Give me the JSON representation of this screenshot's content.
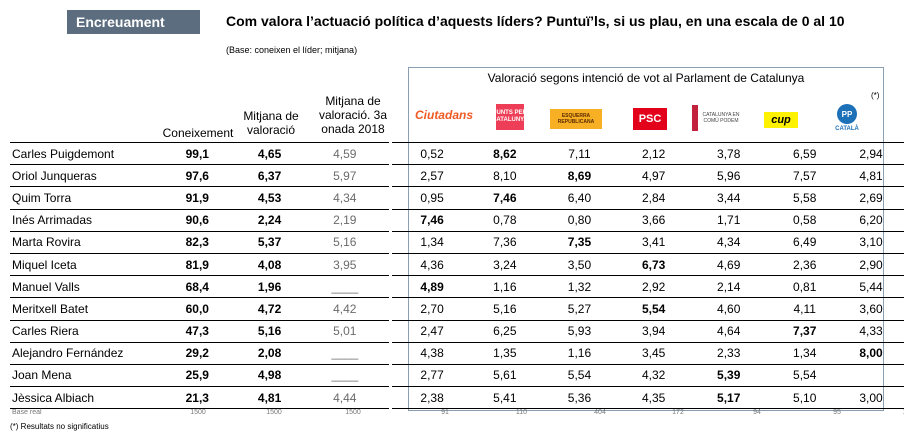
{
  "header": {
    "tag": "Encreuament",
    "title": "Com valora l’actuació política d’aquests líders? Puntuï’ls, si us plau, en una escala de 0 al 10",
    "subtitle": "(Base: coneixen el líder; mitjana)"
  },
  "columns": {
    "coneixement": "Coneixement",
    "mitjana": "Mitjana de valoració",
    "mitjana_prev": "Mitjana de valoració. 3a onada 2018",
    "group_title": "Valoració segons intenció de vot al Parlament de Catalunya",
    "asterisk": "(*)"
  },
  "parties": [
    {
      "name": "Ciutadans",
      "logo_text": "Ciutadans",
      "icon": "ciutadans-logo",
      "color": "#f05a23"
    },
    {
      "name": "Junts per Catalunya",
      "logo_text": "JUNTS PER CATALUNYA",
      "icon": "junts-logo",
      "color": "#ee3e57"
    },
    {
      "name": "Esquerra Republicana",
      "logo_text": "ESQUERRA REPUBLICANA",
      "icon": "erc-logo",
      "color": "#f7b023"
    },
    {
      "name": "PSC",
      "logo_text": "PSC",
      "icon": "psc-logo",
      "color": "#e3001b"
    },
    {
      "name": "Catalunya en Comú Podem",
      "logo_text": "CATALUNYA EN COMÚ PODEM",
      "icon": "comu-podem-logo",
      "color": "#c0233b"
    },
    {
      "name": "CUP",
      "logo_text": "cup",
      "icon": "cup-logo",
      "color": "#fff200"
    },
    {
      "name": "PP",
      "logo_text": "PP",
      "logo_sub": "CATALÀ",
      "icon": "pp-logo",
      "color": "#1d71b8"
    }
  ],
  "rows": [
    {
      "name": "Carles Puigdemont",
      "con": "99,1",
      "mit": "4,65",
      "prev": "4,59",
      "v": [
        "0,52",
        "8,62",
        "7,11",
        "2,12",
        "3,78",
        "6,59",
        "2,94"
      ],
      "bold": [
        1
      ]
    },
    {
      "name": "Oriol Junqueras",
      "con": "97,6",
      "mit": "6,37",
      "prev": "5,97",
      "v": [
        "2,57",
        "8,10",
        "8,69",
        "4,97",
        "5,96",
        "7,57",
        "4,81"
      ],
      "bold": [
        2
      ]
    },
    {
      "name": "Quim Torra",
      "con": "91,9",
      "mit": "4,53",
      "prev": "4,34",
      "v": [
        "0,95",
        "7,46",
        "6,40",
        "2,84",
        "3,44",
        "5,58",
        "2,69"
      ],
      "bold": [
        1
      ]
    },
    {
      "name": "Inés Arrimadas",
      "con": "90,6",
      "mit": "2,24",
      "prev": "2,19",
      "v": [
        "7,46",
        "0,78",
        "0,80",
        "3,66",
        "1,71",
        "0,58",
        "6,20"
      ],
      "bold": [
        0
      ]
    },
    {
      "name": "Marta Rovira",
      "con": "82,3",
      "mit": "5,37",
      "prev": "5,16",
      "v": [
        "1,34",
        "7,36",
        "7,35",
        "3,41",
        "4,34",
        "6,49",
        "3,10"
      ],
      "bold": [
        2
      ]
    },
    {
      "name": "Miquel Iceta",
      "con": "81,9",
      "mit": "4,08",
      "prev": "3,95",
      "v": [
        "4,36",
        "3,24",
        "3,50",
        "6,73",
        "4,69",
        "2,36",
        "2,90"
      ],
      "bold": [
        3
      ]
    },
    {
      "name": "Manuel Valls",
      "con": "68,4",
      "mit": "1,96",
      "prev": "____",
      "v": [
        "4,89",
        "1,16",
        "1,32",
        "2,92",
        "2,14",
        "0,81",
        "5,44"
      ],
      "bold": [
        0
      ]
    },
    {
      "name": "Meritxell Batet",
      "con": "60,0",
      "mit": "4,72",
      "prev": "4,42",
      "v": [
        "2,70",
        "5,16",
        "5,27",
        "5,54",
        "4,60",
        "4,11",
        "3,60"
      ],
      "bold": [
        3
      ]
    },
    {
      "name": "Carles Riera",
      "con": "47,3",
      "mit": "5,16",
      "prev": "5,01",
      "v": [
        "2,47",
        "6,25",
        "5,93",
        "3,94",
        "4,64",
        "7,37",
        "4,33"
      ],
      "bold": [
        5
      ]
    },
    {
      "name": "Alejandro Fernández",
      "con": "29,2",
      "mit": "2,08",
      "prev": "____",
      "v": [
        "4,38",
        "1,35",
        "1,16",
        "3,45",
        "2,33",
        "1,34",
        "8,00"
      ],
      "bold": [
        6
      ]
    },
    {
      "name": "Joan Mena",
      "con": "25,9",
      "mit": "4,98",
      "prev": "____",
      "v": [
        "2,77",
        "5,61",
        "5,54",
        "4,32",
        "5,39",
        "5,54",
        ""
      ],
      "bold": [
        4
      ]
    },
    {
      "name": "Jèssica Albiach",
      "con": "21,3",
      "mit": "4,81",
      "prev": "4,44",
      "v": [
        "2,38",
        "5,41",
        "5,36",
        "4,35",
        "5,17",
        "5,10",
        "3,00"
      ],
      "bold": [
        4
      ]
    }
  ],
  "base": {
    "label": "Base real",
    "con": "1500",
    "mit": "1500",
    "prev": "1500",
    "parties": [
      "91",
      "110",
      "404",
      "172",
      "94",
      "95",
      "18"
    ]
  },
  "footnote": "(*) Resultats no significatius"
}
